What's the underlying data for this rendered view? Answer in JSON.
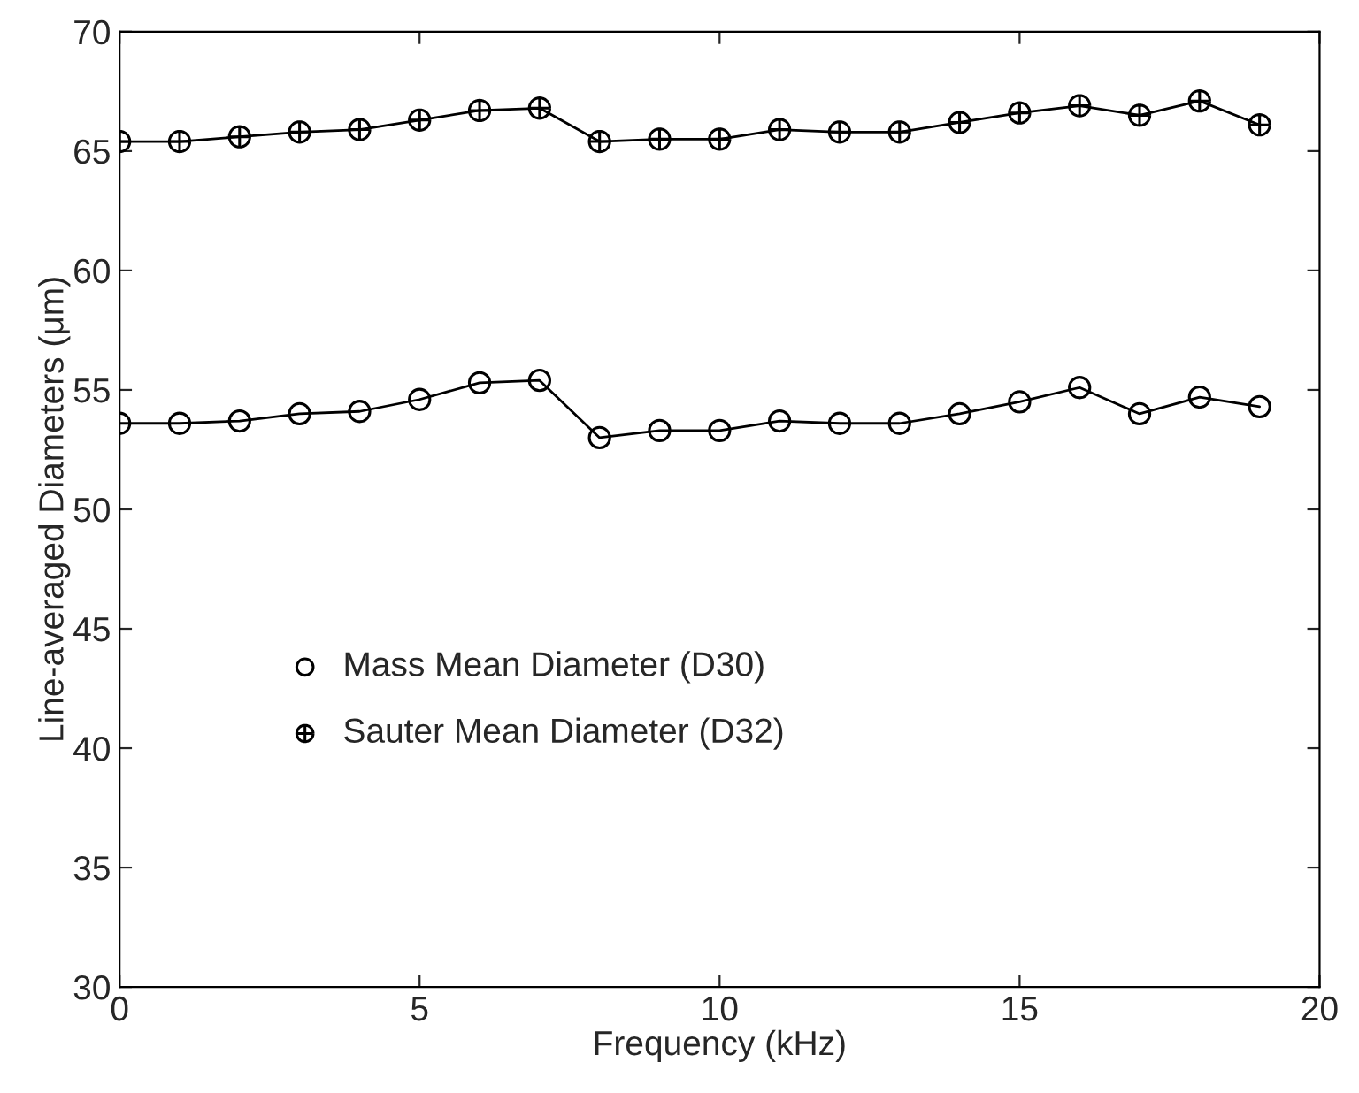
{
  "chart_data": {
    "type": "line",
    "xlabel": "Frequency (kHz)",
    "ylabel": "Line-averaged Diameters (μm)",
    "x": [
      0,
      1,
      2,
      3,
      4,
      5,
      6,
      7,
      8,
      9,
      10,
      11,
      12,
      13,
      14,
      15,
      16,
      17,
      18,
      19
    ],
    "series": [
      {
        "name": "Mass Mean Diameter (D30)",
        "color": "#000000",
        "marker": "circle",
        "values": [
          53.6,
          53.6,
          53.7,
          54.0,
          54.1,
          54.6,
          55.3,
          55.4,
          53.0,
          53.3,
          53.3,
          53.7,
          53.6,
          53.6,
          54.0,
          54.5,
          55.1,
          54.0,
          54.7,
          54.3
        ]
      },
      {
        "name": "Sauter Mean Diameter (D32)",
        "color": "#000000",
        "marker": "cross",
        "values": [
          65.4,
          65.4,
          65.6,
          65.8,
          65.9,
          66.3,
          66.7,
          66.8,
          65.4,
          65.5,
          65.5,
          65.9,
          65.8,
          65.8,
          66.2,
          66.6,
          66.9,
          66.5,
          67.1,
          66.1
        ]
      }
    ],
    "xlim": [
      0,
      20
    ],
    "xticks": [
      0,
      5,
      10,
      15,
      20
    ],
    "ylim": [
      30,
      70
    ],
    "yticks": [
      30,
      35,
      40,
      45,
      50,
      55,
      60,
      65,
      70
    ],
    "grid": false,
    "legend": "center left",
    "line_style": "solid"
  }
}
